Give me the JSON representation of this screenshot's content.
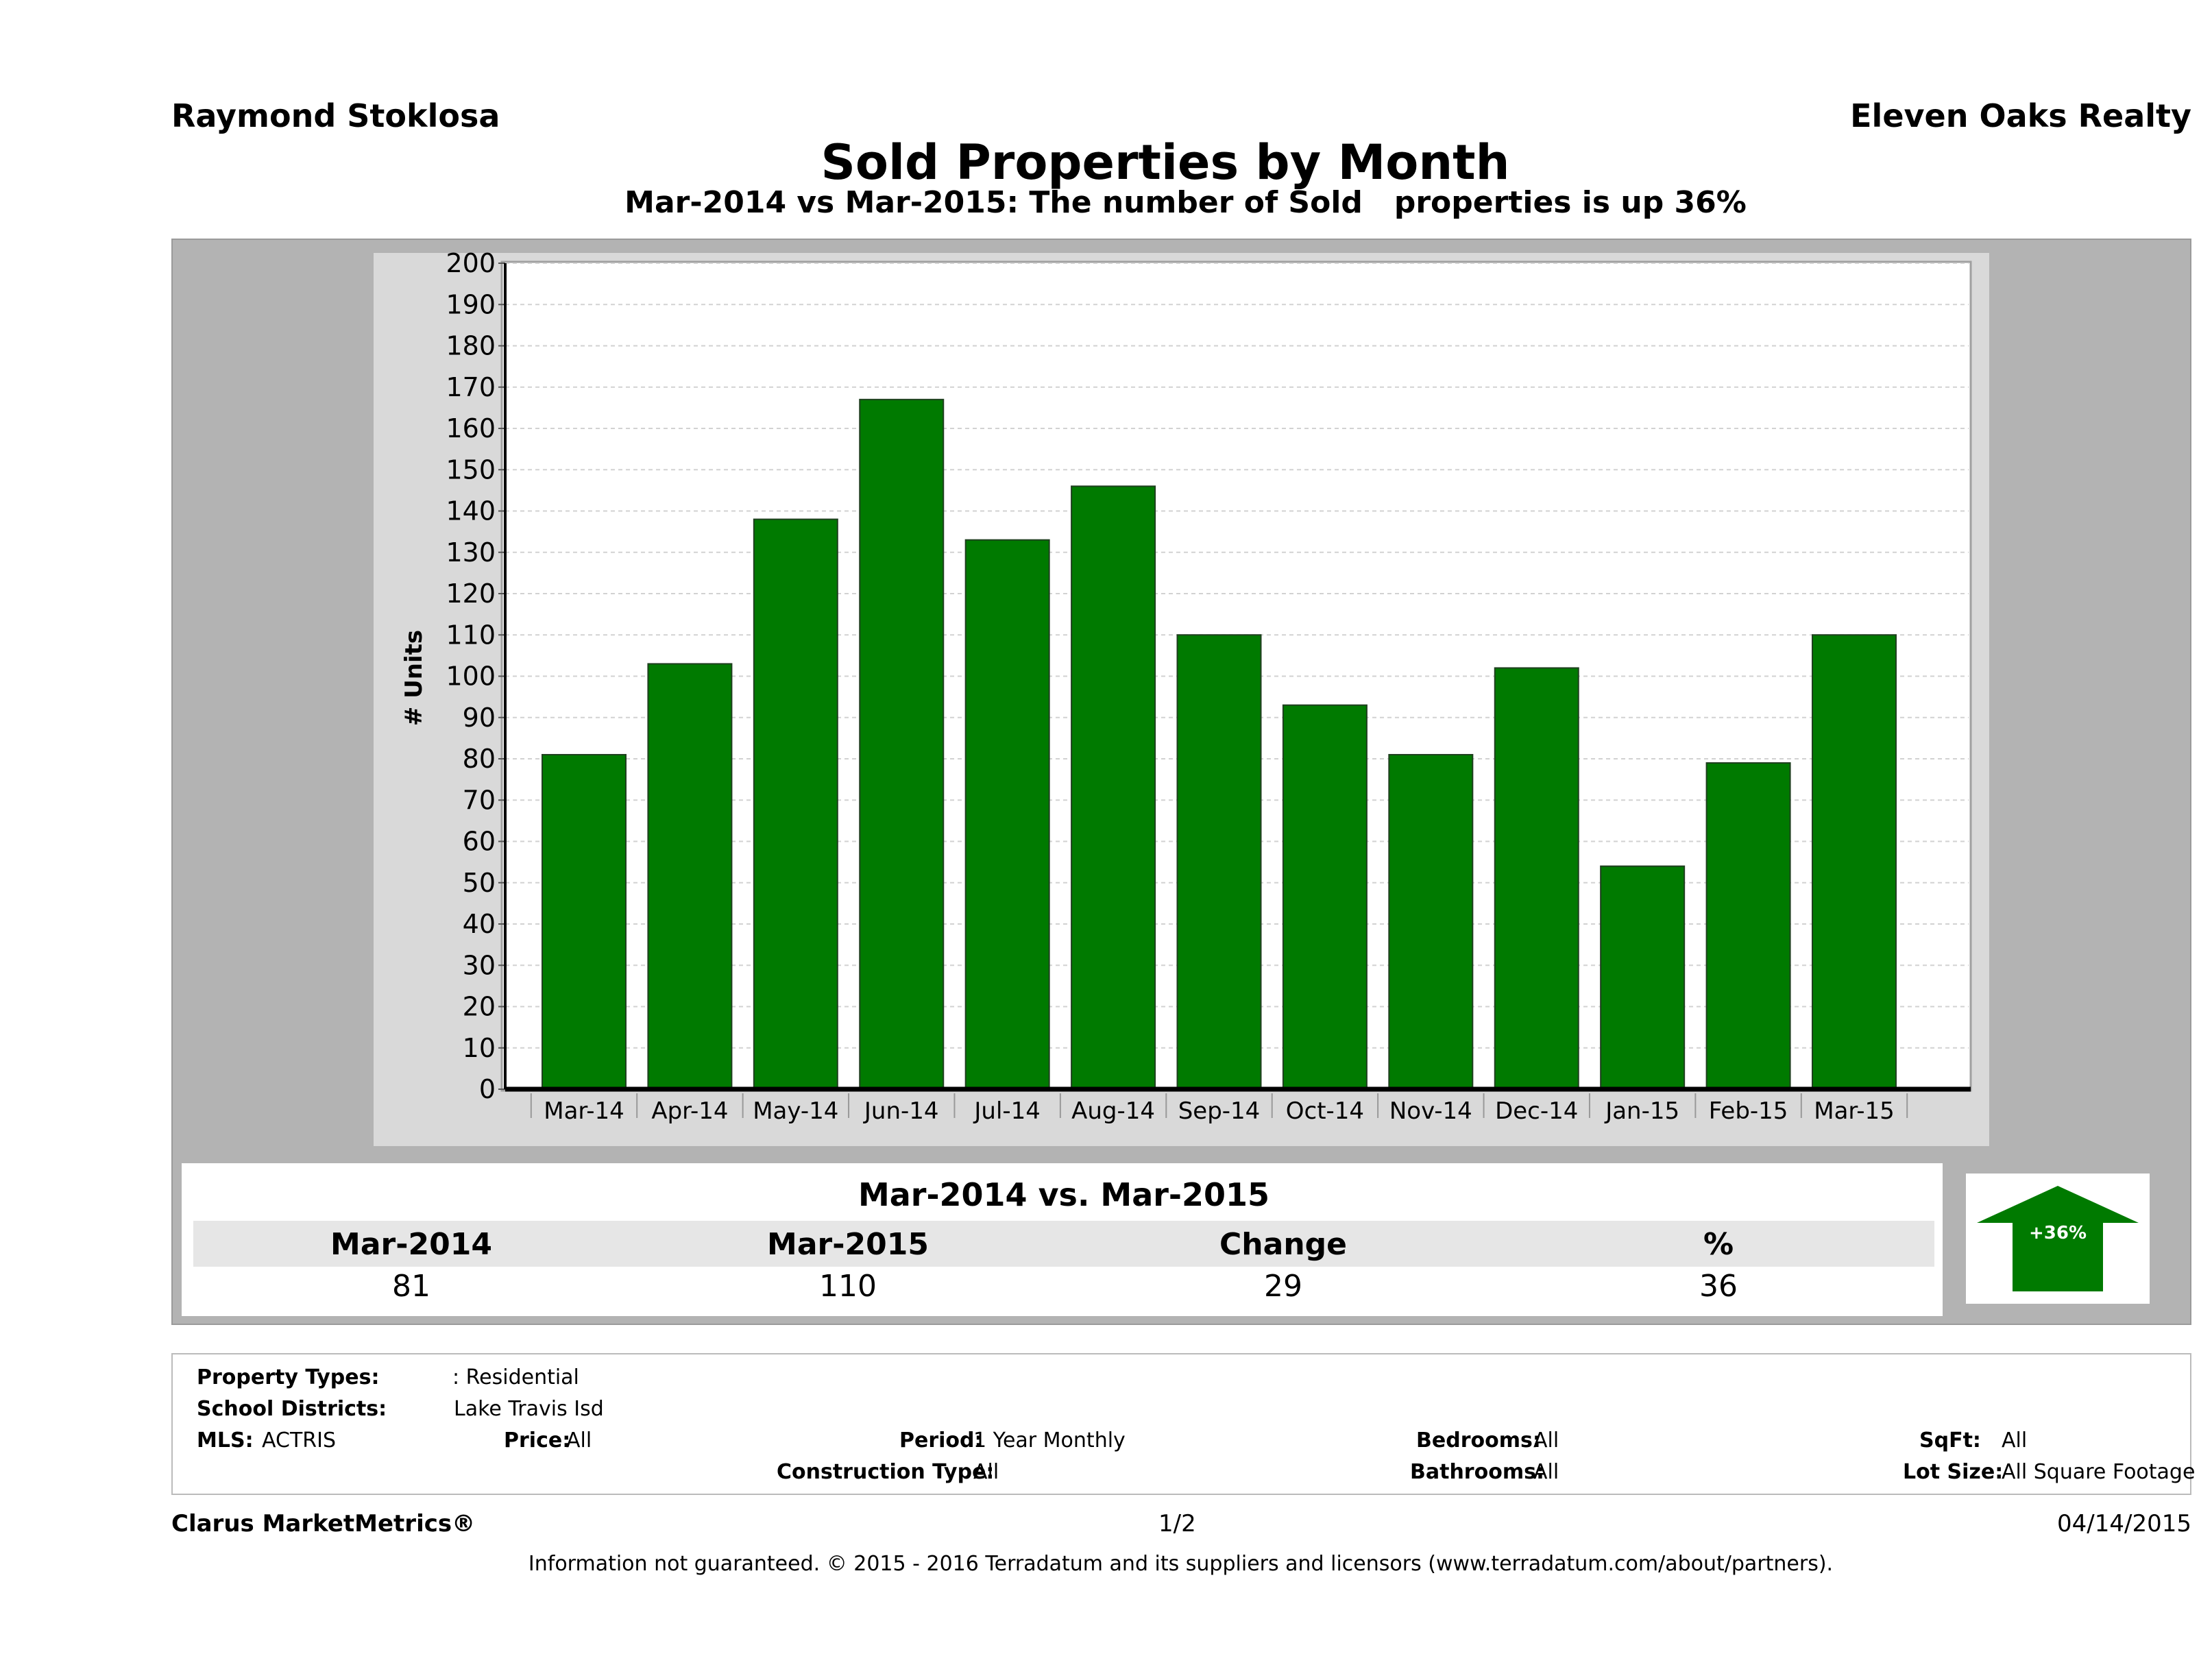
{
  "header": {
    "agent": "Raymond Stoklosa",
    "company": "Eleven Oaks Realty"
  },
  "chart_data": {
    "type": "bar",
    "title": "Sold Properties by Month",
    "subtitle": "Mar-2014 vs Mar-2015: The number of Sold   properties is up 36%",
    "ylabel": "# Units",
    "xlabel": "",
    "ylim": [
      0,
      200
    ],
    "yticks": [
      "0",
      "10",
      "20",
      "30",
      "40",
      "50",
      "60",
      "70",
      "80",
      "90",
      "100",
      "110",
      "120",
      "130",
      "140",
      "150",
      "160",
      "170",
      "180",
      "190",
      "200"
    ],
    "categories": [
      "Mar-14",
      "Apr-14",
      "May-14",
      "Jun-14",
      "Jul-14",
      "Aug-14",
      "Sep-14",
      "Oct-14",
      "Nov-14",
      "Dec-14",
      "Jan-15",
      "Feb-15",
      "Mar-15"
    ],
    "values": [
      81,
      103,
      138,
      167,
      133,
      146,
      110,
      93,
      81,
      102,
      54,
      79,
      110
    ],
    "bar_color": "#007a00",
    "grid": true,
    "legend": "none"
  },
  "summary": {
    "title": "Mar-2014 vs. Mar-2015",
    "headers": [
      "Mar-2014",
      "Mar-2015",
      "Change",
      "%"
    ],
    "values": [
      "81",
      "110",
      "29",
      "36"
    ],
    "arrow_label": "+36%",
    "arrow_color": "#007a00"
  },
  "criteria": {
    "property_types_label": "Property Types:",
    "property_types_value": ": Residential",
    "school_districts_label": "School Districts:",
    "school_districts_value": "Lake Travis Isd",
    "mls_label": "MLS:",
    "mls_value": "ACTRIS",
    "price_label": "Price:",
    "price_value": "All",
    "period_label": "Period:",
    "period_value": "1 Year Monthly",
    "construction_label": "Construction Type:",
    "construction_value": "All",
    "bedrooms_label": "Bedrooms:",
    "bedrooms_value": "All",
    "bathrooms_label": "Bathrooms:",
    "bathrooms_value": "All",
    "sqft_label": "SqFt:",
    "sqft_value": "All",
    "lot_label": "Lot Size:",
    "lot_value": "All Square Footage"
  },
  "footer": {
    "brand": "Clarus MarketMetrics®",
    "page": "1/2",
    "date": "04/14/2015",
    "disclaimer": "Information not guaranteed. © 2015 - 2016 Terradatum and its suppliers and licensors (www.terradatum.com/about/partners)."
  }
}
